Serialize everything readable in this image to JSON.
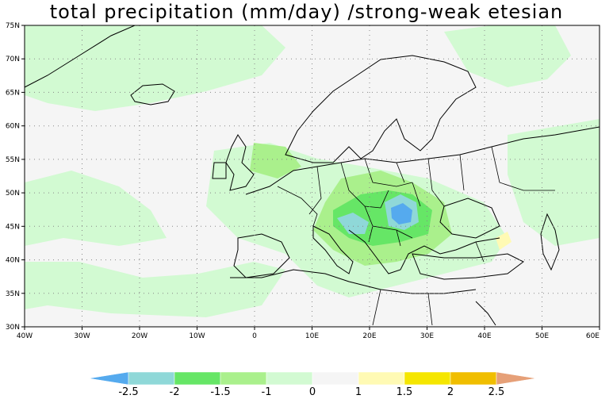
{
  "title": "total precipitation (mm/day) /strong-weak etesian",
  "axes": {
    "x_ticks": [
      "40W",
      "30W",
      "20W",
      "10W",
      "0",
      "10E",
      "20E",
      "30E",
      "40E",
      "50E",
      "60E"
    ],
    "y_ticks": [
      "75N",
      "70N",
      "65N",
      "60N",
      "55N",
      "50N",
      "45N",
      "40N",
      "35N",
      "30N"
    ],
    "lon_range": [
      -40,
      60
    ],
    "lat_range": [
      30,
      75
    ]
  },
  "colorbar": {
    "labels": [
      "-2.5",
      "-2",
      "-1.5",
      "-1",
      "0",
      "1",
      "1.5",
      "2",
      "2.5"
    ],
    "colors": [
      "#55aaee",
      "#8fd8d8",
      "#66e666",
      "#aaf08c",
      "#d2fad2",
      "#f5f5f5",
      "#fffab4",
      "#f5e600",
      "#f0be00",
      "#e6a078"
    ]
  },
  "map_colors": {
    "background": "#f5f5f5",
    "light_green": "#d2fad2",
    "green": "#aaf08c",
    "mid_green": "#66e666",
    "cyan": "#8fd8d8",
    "blue": "#55aaee",
    "yellow": "#fffab4"
  }
}
